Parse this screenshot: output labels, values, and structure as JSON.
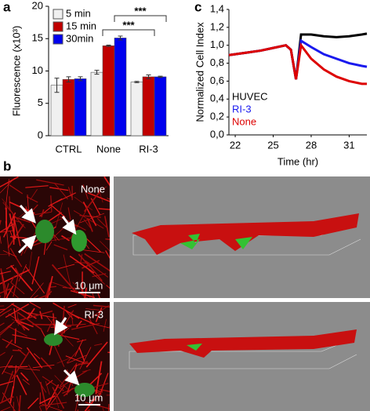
{
  "chart_data": [
    {
      "type": "bar",
      "panel_label": "a",
      "y_label": "Fluorescence (x10³)",
      "categories": [
        "CTRL",
        "None",
        "RI-3"
      ],
      "series": [
        {
          "name": "5 min",
          "color": "#f0f0f0",
          "values": [
            7.8,
            9.8,
            8.3
          ],
          "errors": [
            1.1,
            0.3,
            0.1
          ]
        },
        {
          "name": "15 min",
          "color": "#c00000",
          "values": [
            8.7,
            13.9,
            9.1
          ],
          "errors": [
            0.4,
            0.1,
            0.3
          ]
        },
        {
          "name": "30min",
          "color": "#0000ee",
          "values": [
            8.8,
            15.1,
            9.1
          ],
          "errors": [
            0.3,
            0.3,
            0.1
          ]
        }
      ],
      "ylim": [
        0,
        20
      ],
      "yticks": [
        0,
        5,
        10,
        15,
        20
      ],
      "annotations": [
        "***",
        "***"
      ]
    },
    {
      "type": "line",
      "panel_label": "c",
      "y_label": "Normalized Cell Index",
      "x_label": "Time (hr)",
      "x": [
        21.5,
        22,
        23,
        24,
        25,
        26,
        26.4,
        26.8,
        27.2,
        28,
        29,
        30,
        31,
        32,
        32.4
      ],
      "series": [
        {
          "name": "HUVEC",
          "color": "#000000",
          "values": [
            0.89,
            0.9,
            0.92,
            0.94,
            0.97,
            1.0,
            0.95,
            0.62,
            1.12,
            1.12,
            1.1,
            1.09,
            1.1,
            1.12,
            1.13
          ]
        },
        {
          "name": "RI-3",
          "color": "#1a1aee",
          "values": [
            0.89,
            0.9,
            0.92,
            0.94,
            0.97,
            1.0,
            0.95,
            0.62,
            1.05,
            0.98,
            0.9,
            0.85,
            0.8,
            0.77,
            0.76
          ]
        },
        {
          "name": "None",
          "color": "#dd0000",
          "values": [
            0.89,
            0.9,
            0.92,
            0.94,
            0.97,
            1.0,
            0.95,
            0.62,
            1.0,
            0.85,
            0.73,
            0.65,
            0.6,
            0.57,
            0.57
          ]
        }
      ],
      "xlim": [
        21.5,
        32.4
      ],
      "xticks": [
        22,
        25,
        28,
        31
      ],
      "ylim": [
        0,
        1.4
      ],
      "yticks": [
        {
          "value": 0,
          "label": "0,0"
        },
        {
          "value": 0.2,
          "label": "0,2"
        },
        {
          "value": 0.4,
          "label": "0,4"
        },
        {
          "value": 0.6,
          "label": "0,6"
        },
        {
          "value": 0.8,
          "label": "0,8"
        },
        {
          "value": 1.0,
          "label": "1,0"
        },
        {
          "value": 1.2,
          "label": "1,2"
        },
        {
          "value": 1.4,
          "label": "1,4"
        }
      ]
    }
  ],
  "panel_b": {
    "label": "b",
    "images": [
      {
        "label": "None",
        "scale_bar": "10 μm"
      },
      {
        "label": "RI-3",
        "scale_bar": "10 μm"
      }
    ]
  }
}
